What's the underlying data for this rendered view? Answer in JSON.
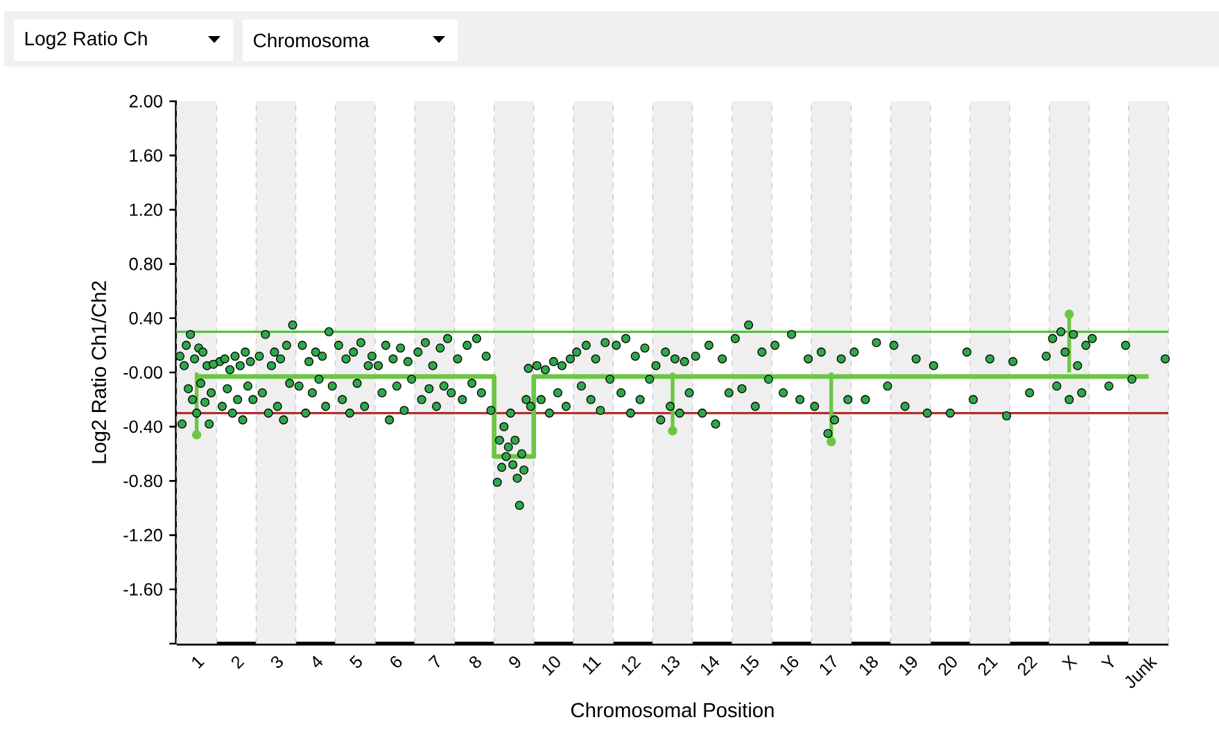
{
  "chart_data": {
    "type": "scatter",
    "xlabel": "Chromosomal Position",
    "ylabel": "Log2 Ratio Ch1/Ch2",
    "annotations": [
      "Log2 Ratio Ch",
      "Chromosoma"
    ],
    "categories": [
      "1",
      "2",
      "3",
      "4",
      "5",
      "6",
      "7",
      "8",
      "9",
      "10",
      "11",
      "12",
      "13",
      "14",
      "15",
      "16",
      "17",
      "18",
      "19",
      "20",
      "21",
      "22",
      "X",
      "Y",
      "Junk"
    ],
    "ylim": [
      -2,
      2
    ],
    "yticks": [
      {
        "value": 2,
        "label": "2.00"
      },
      {
        "value": 1.6,
        "label": "1.60"
      },
      {
        "value": 1.2,
        "label": "1.20"
      },
      {
        "value": 0.8,
        "label": "0.80"
      },
      {
        "value": 0.4,
        "label": "0.40"
      },
      {
        "value": 0,
        "label": "-0.00"
      },
      {
        "value": -0.4,
        "label": "-0.40"
      },
      {
        "value": -0.8,
        "label": "-0.80"
      },
      {
        "value": -1.2,
        "label": "-1.20"
      },
      {
        "value": -1.6,
        "label": "-1.60"
      },
      {
        "value": -2,
        "label": null
      }
    ],
    "ref_lines": [
      {
        "axis": "y",
        "value": 0.3,
        "color": "#5cbf4a",
        "line_style": "solid"
      },
      {
        "axis": "y",
        "value": -0.3,
        "color": "#b03030",
        "line_style": "solid"
      }
    ],
    "marker": "circle",
    "series": [
      {
        "type": "step",
        "color": "#6cc644",
        "marker": "none",
        "line_style": "solid",
        "values": [
          -0.03,
          -0.03,
          -0.03,
          -0.03,
          -0.03,
          -0.03,
          -0.03,
          -0.03,
          -0.62,
          -0.03,
          -0.03,
          -0.03,
          -0.03,
          -0.03,
          -0.03,
          -0.03,
          -0.03,
          -0.03,
          -0.03,
          -0.03,
          -0.03,
          -0.03,
          -0.03,
          -0.03,
          -0.03
        ]
      },
      {
        "type": "lollipop",
        "color": "#6cc644",
        "values": [
          -0.46,
          null,
          null,
          null,
          null,
          null,
          null,
          null,
          null,
          null,
          null,
          null,
          -0.43,
          null,
          null,
          null,
          -0.51,
          null,
          null,
          null,
          null,
          null,
          0.43,
          null,
          null
        ]
      },
      {
        "color": "#2ea84a",
        "values": [
          0.12,
          0.08,
          0.12,
          -0.1,
          0.2,
          0.05,
          0.15,
          0.1,
          -0.81,
          0.05,
          0.15,
          0.2,
          0.05,
          0.12,
          0.25,
          0.2,
          -0.25,
          0.15,
          0.2,
          0.05,
          -0.2,
          0.08,
          0.25,
          0.25,
          -0.05
        ]
      },
      {
        "color": "#2ea84a",
        "values": [
          -0.38,
          -0.25,
          -0.15,
          0.2,
          -0.2,
          -0.15,
          -0.2,
          -0.2,
          -0.5,
          -0.2,
          -0.1,
          -0.15,
          -0.35,
          -0.3,
          -0.12,
          -0.15,
          0.15,
          -0.2,
          -0.25,
          -0.3,
          0.1,
          -0.15,
          -0.1,
          -0.1,
          0.1
        ]
      },
      {
        "color": "#2ea84a",
        "values": [
          0.05,
          0.1,
          0.28,
          -0.3,
          0.1,
          0.2,
          0.22,
          0.2,
          -0.7,
          0.02,
          0.2,
          0.25,
          0.15,
          0.2,
          0.35,
          0.28,
          -0.45,
          0.22,
          0.1,
          0.15,
          -0.32,
          0.12,
          0.3,
          0.2,
          null
        ]
      },
      {
        "color": "#2ea84a",
        "values": [
          0.2,
          -0.12,
          -0.3,
          0.08,
          -0.3,
          -0.35,
          -0.12,
          -0.08,
          -0.4,
          -0.3,
          -0.2,
          -0.3,
          -0.25,
          -0.38,
          -0.25,
          -0.2,
          -0.35,
          -0.1,
          -0.3,
          null,
          null,
          null,
          0.15,
          null,
          null
        ]
      },
      {
        "color": "#2ea84a",
        "values": [
          -0.12,
          0.02,
          0.05,
          -0.15,
          0.15,
          0.1,
          0.05,
          0.25,
          -0.62,
          0.08,
          0.1,
          0.12,
          0.1,
          0.1,
          0.15,
          0.1,
          0.1,
          null,
          null,
          null,
          null,
          null,
          -0.2,
          null,
          null
        ]
      },
      {
        "color": "#2ea84a",
        "values": [
          0.28,
          -0.3,
          0.15,
          0.15,
          -0.08,
          -0.1,
          -0.25,
          -0.15,
          -0.55,
          -0.15,
          -0.28,
          -0.2,
          -0.3,
          -0.15,
          -0.05,
          null,
          -0.2,
          null,
          null,
          null,
          null,
          null,
          0.28,
          null,
          null
        ]
      },
      {
        "color": "#2ea84a",
        "values": [
          -0.2,
          0.12,
          -0.25,
          -0.05,
          0.22,
          0.18,
          0.18,
          0.12,
          -0.3,
          0.05,
          0.22,
          0.18,
          0.08,
          null,
          null,
          null,
          null,
          null,
          null,
          null,
          null,
          null,
          0.05,
          null,
          null
        ]
      },
      {
        "color": "#2ea84a",
        "values": [
          0.1,
          -0.2,
          0.1,
          0.12,
          -0.25,
          -0.28,
          -0.1,
          -0.28,
          -0.68,
          -0.25,
          -0.05,
          -0.05,
          -0.15,
          null,
          null,
          null,
          null,
          null,
          null,
          null,
          null,
          null,
          -0.15,
          null,
          null
        ]
      },
      {
        "color": "#2ea84a",
        "values": [
          -0.3,
          0.05,
          -0.35,
          -0.25,
          0.05,
          0.08,
          0.25,
          null,
          -0.5,
          0.1,
          null,
          null,
          null,
          null,
          null,
          null,
          null,
          null,
          null,
          null,
          null,
          null,
          0.2,
          null,
          null
        ]
      },
      {
        "color": "#2ea84a",
        "values": [
          0.18,
          -0.35,
          0.2,
          0.3,
          0.12,
          -0.05,
          -0.15,
          null,
          -0.78,
          null,
          null,
          null,
          null,
          null,
          null,
          null,
          null,
          null,
          null,
          null,
          null,
          null,
          null,
          null,
          null
        ]
      },
      {
        "color": "#2ea84a",
        "values": [
          -0.08,
          0.15,
          -0.08,
          -0.1,
          null,
          null,
          null,
          null,
          -0.98,
          null,
          null,
          null,
          null,
          null,
          null,
          null,
          null,
          null,
          null,
          null,
          null,
          null,
          null,
          null,
          null
        ]
      },
      {
        "color": "#2ea84a",
        "values": [
          0.15,
          -0.1,
          0.35,
          null,
          null,
          null,
          null,
          null,
          -0.6,
          null,
          null,
          null,
          null,
          null,
          null,
          null,
          null,
          null,
          null,
          null,
          null,
          null,
          null,
          null,
          null
        ]
      },
      {
        "color": "#2ea84a",
        "values": [
          -0.22,
          0.08,
          null,
          null,
          null,
          null,
          null,
          null,
          -0.72,
          null,
          null,
          null,
          null,
          null,
          null,
          null,
          null,
          null,
          null,
          null,
          null,
          null,
          null,
          null,
          null
        ]
      },
      {
        "color": "#2ea84a",
        "values": [
          0.05,
          -0.2,
          null,
          null,
          null,
          null,
          null,
          null,
          -0.2,
          null,
          null,
          null,
          null,
          null,
          null,
          null,
          null,
          null,
          null,
          null,
          null,
          null,
          null,
          null,
          null
        ]
      },
      {
        "color": "#2ea84a",
        "values": [
          -0.38,
          null,
          null,
          null,
          null,
          null,
          null,
          null,
          0.03,
          null,
          null,
          null,
          null,
          null,
          null,
          null,
          null,
          null,
          null,
          null,
          null,
          null,
          null,
          null,
          null
        ]
      },
      {
        "color": "#2ea84a",
        "values": [
          -0.15,
          null,
          null,
          null,
          null,
          null,
          null,
          null,
          -0.25,
          null,
          null,
          null,
          null,
          null,
          null,
          null,
          null,
          null,
          null,
          null,
          null,
          null,
          null,
          null,
          null
        ]
      },
      {
        "color": "#2ea84a",
        "values": [
          0.06,
          null,
          null,
          null,
          null,
          null,
          null,
          null,
          null,
          null,
          null,
          null,
          null,
          null,
          null,
          null,
          null,
          null,
          null,
          null,
          null,
          null,
          null,
          null,
          null
        ]
      }
    ]
  }
}
